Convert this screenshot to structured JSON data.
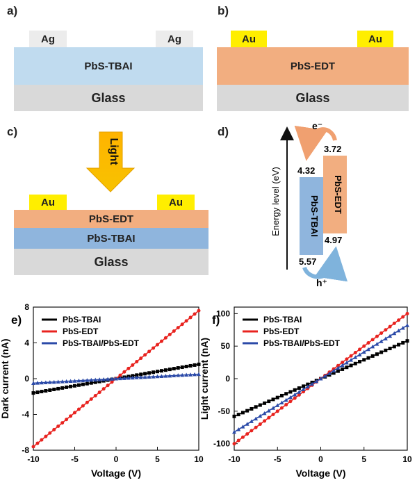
{
  "panels": {
    "a": "a)",
    "b": "b)",
    "c": "c)",
    "d": "d)",
    "e": "e)",
    "f": "f)"
  },
  "device_a": {
    "contact_left": "Ag",
    "contact_right": "Ag",
    "film": "PbS-TBAI",
    "substrate": "Glass"
  },
  "device_b": {
    "contact_left": "Au",
    "contact_right": "Au",
    "film": "PbS-EDT",
    "substrate": "Glass"
  },
  "device_c": {
    "light": "Light",
    "contact_left": "Au",
    "contact_right": "Au",
    "top_film": "PbS-EDT",
    "bottom_film": "PbS-TBAI",
    "substrate": "Glass"
  },
  "energy": {
    "axis_label": "Energy level (eV)",
    "tbai_label": "PbS-TBAI",
    "tbai_top": "4.32",
    "tbai_bottom": "5.57",
    "edt_label": "PbS-EDT",
    "edt_top": "3.72",
    "edt_bottom": "4.97",
    "electron": "e⁻",
    "hole": "h⁺",
    "colors": {
      "tbai": "#8fb5dd",
      "edt": "#f2ae80"
    }
  },
  "chart_data": [
    {
      "type": "line",
      "panel": "e",
      "xlabel": "Voltage (V)",
      "ylabel": "Dark current (nA)",
      "xlim": [
        -10,
        10
      ],
      "ylim": [
        -8,
        8
      ],
      "xticks": [
        -10,
        -5,
        0,
        5,
        10
      ],
      "yticks": [
        -8,
        -4,
        0,
        4,
        8
      ],
      "legend_position": "top-left",
      "series": [
        {
          "name": "PbS-TBAI",
          "color": "#000000",
          "marker": "square",
          "x": [
            -10,
            10
          ],
          "y": [
            -1.6,
            1.6
          ]
        },
        {
          "name": "PbS-EDT",
          "color": "#e8231f",
          "marker": "circle",
          "x": [
            -10,
            10
          ],
          "y": [
            -7.6,
            7.6
          ]
        },
        {
          "name": "PbS-TBAI/PbS-EDT",
          "color": "#2b4aa8",
          "marker": "triangle",
          "x": [
            -10,
            10
          ],
          "y": [
            -0.5,
            0.5
          ]
        }
      ]
    },
    {
      "type": "line",
      "panel": "f",
      "xlabel": "Voltage (V)",
      "ylabel": "Light current (nA)",
      "xlim": [
        -10,
        10
      ],
      "ylim": [
        -110,
        110
      ],
      "xticks": [
        -10,
        -5,
        0,
        5,
        10
      ],
      "yticks": [
        -100,
        -50,
        0,
        50,
        100
      ],
      "legend_position": "top-left",
      "series": [
        {
          "name": "PbS-TBAI",
          "color": "#000000",
          "marker": "square",
          "x": [
            -10,
            10
          ],
          "y": [
            -58,
            58
          ]
        },
        {
          "name": "PbS-EDT",
          "color": "#e8231f",
          "marker": "circle",
          "x": [
            -10,
            10
          ],
          "y": [
            -100,
            100
          ]
        },
        {
          "name": "PbS-TBAI/PbS-EDT",
          "color": "#2b4aa8",
          "marker": "triangle",
          "x": [
            -10,
            10
          ],
          "y": [
            -82,
            82
          ]
        }
      ]
    }
  ]
}
